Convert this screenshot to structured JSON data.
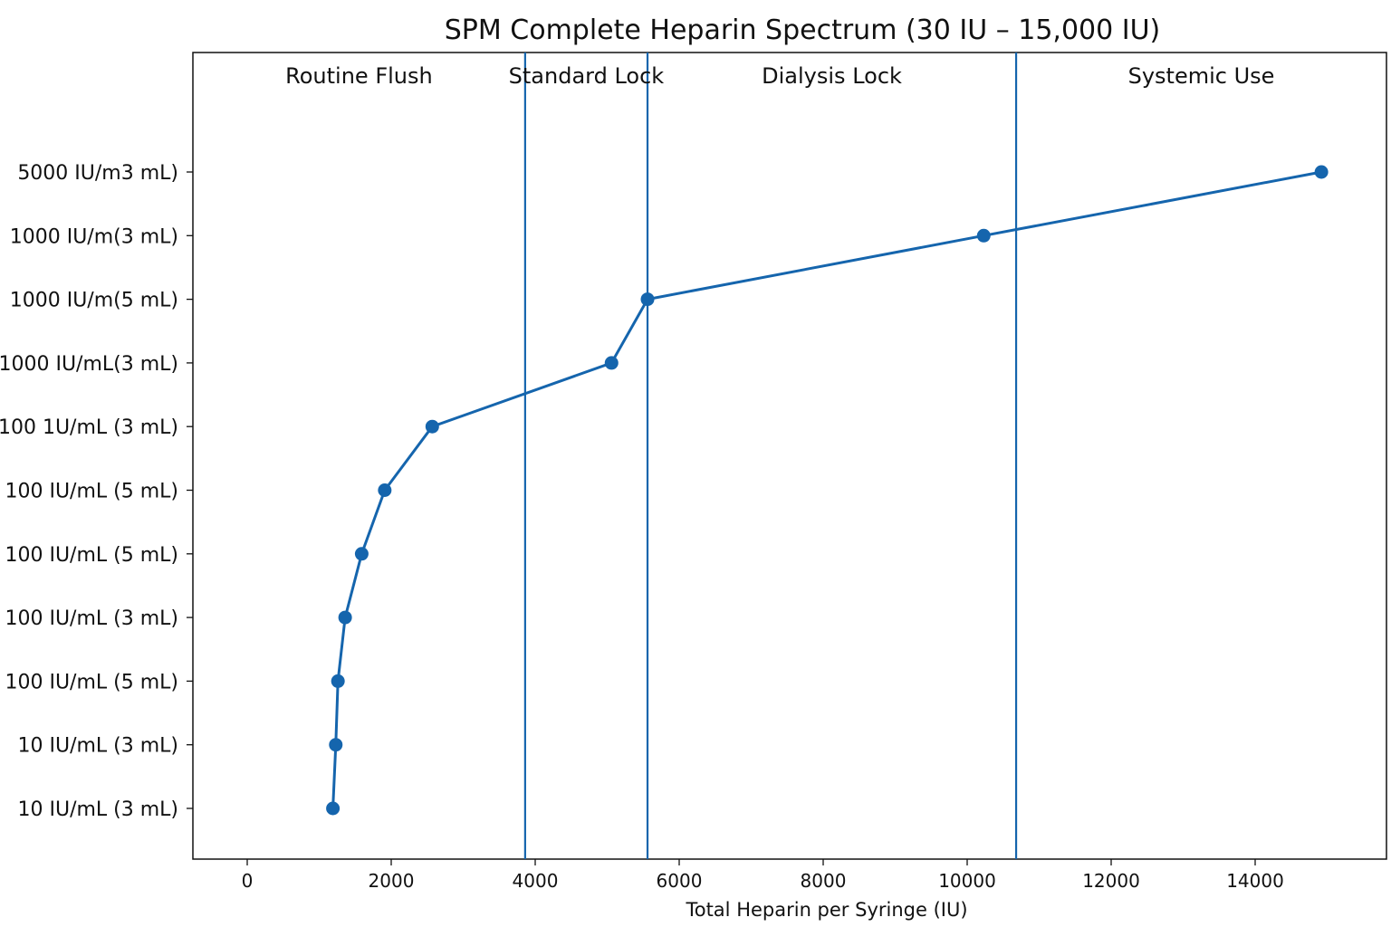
{
  "chart_data": {
    "type": "line",
    "title": "SPM Complete Heparin Spectrum (30 IU – 15,000 IU)",
    "xlabel": "Total Heparin per Syringe (IU)",
    "ylabel": "",
    "xlim": [
      -900,
      18000
    ],
    "xticks": [
      0,
      2000,
      4000,
      6000,
      8000,
      10000,
      12000,
      14000
    ],
    "grid": false,
    "legend": "none",
    "y_categories": [
      "10 IU/mL (3 mL)",
      "10 IU/mL (3 mL)",
      "100 IU/mL (5 mL)",
      "100 IU/mL (3 mL)",
      "100 IU/mL (5 mL)",
      "100 IU/mL (5 mL)",
      "100 1U/mL (3 mL)",
      "1000 IU/mL(3 mL)",
      "1000 IU/m(5 mL)",
      "1000 IU/m(3 mL)",
      "5000 IU/m3 mL)"
    ],
    "band_boundaries": [
      3860,
      5560,
      10680
    ],
    "bands": [
      "Routine Flush",
      "Standard Lock",
      "Dialysis Lock",
      "Systemic Use"
    ],
    "series": [
      {
        "color": "#1565ad",
        "points": [
          {
            "x": 1190,
            "y": 0
          },
          {
            "x": 1230,
            "y": 1
          },
          {
            "x": 1260,
            "y": 2
          },
          {
            "x": 1360,
            "y": 3
          },
          {
            "x": 1590,
            "y": 4
          },
          {
            "x": 1910,
            "y": 5
          },
          {
            "x": 2570,
            "y": 6
          },
          {
            "x": 5060,
            "y": 7
          },
          {
            "x": 5560,
            "y": 8
          },
          {
            "x": 10230,
            "y": 9
          },
          {
            "x": 14920,
            "y": 10
          }
        ]
      }
    ]
  }
}
